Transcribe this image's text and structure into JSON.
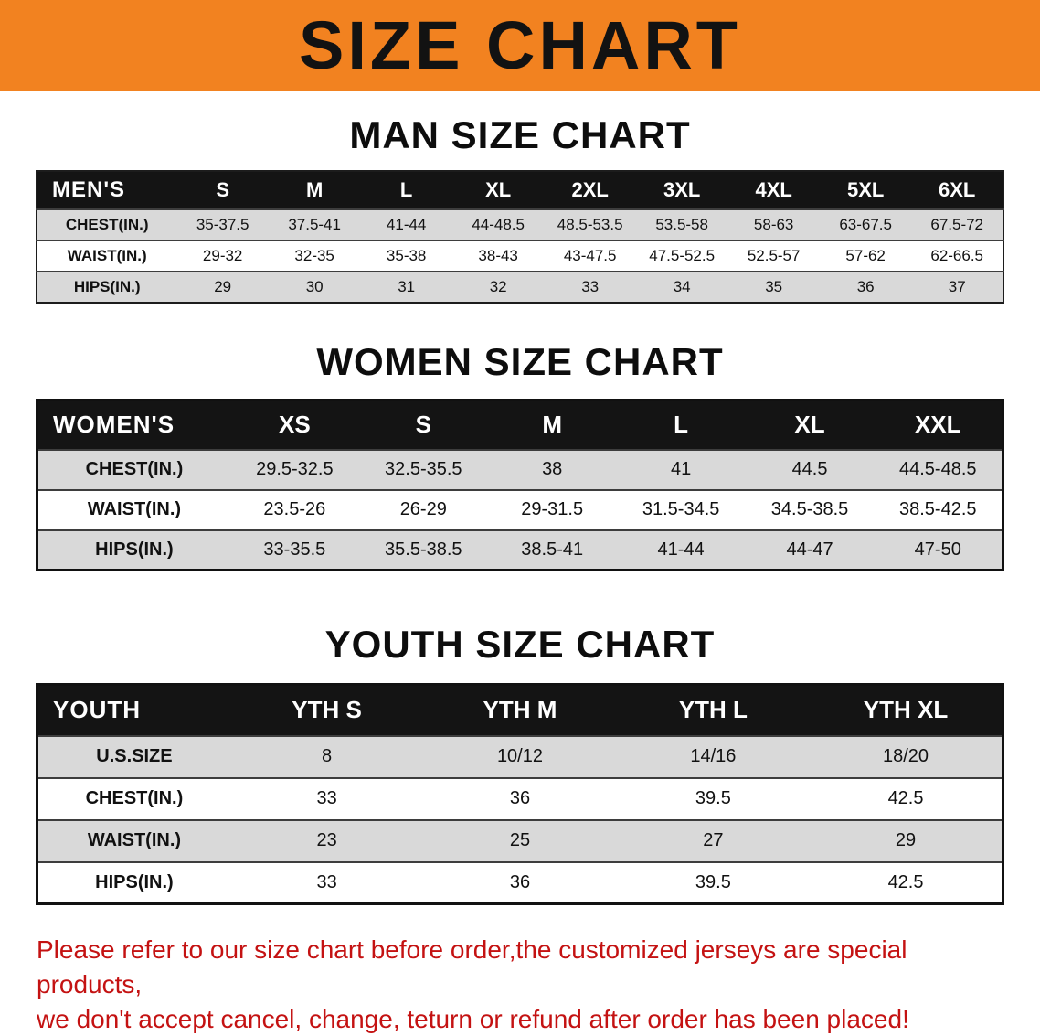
{
  "banner": {
    "title": "SIZE CHART",
    "bg_color": "#F28220",
    "text_color": "#121212"
  },
  "colors": {
    "table_header_bg": "#141414",
    "table_header_text": "#FFFFFF",
    "row_shaded": "#D9D9D9",
    "row_plain": "#FFFFFF",
    "disclaimer_text": "#C41212"
  },
  "men": {
    "heading": "MAN SIZE CHART",
    "table": {
      "header": [
        "MEN'S",
        "S",
        "M",
        "L",
        "XL",
        "2XL",
        "3XL",
        "4XL",
        "5XL",
        "6XL"
      ],
      "rows": [
        {
          "label": "CHEST(IN.)",
          "values": [
            "35-37.5",
            "37.5-41",
            "41-44",
            "44-48.5",
            "48.5-53.5",
            "53.5-58",
            "58-63",
            "63-67.5",
            "67.5-72"
          ]
        },
        {
          "label": "WAIST(IN.)",
          "values": [
            "29-32",
            "32-35",
            "35-38",
            "38-43",
            "43-47.5",
            "47.5-52.5",
            "52.5-57",
            "57-62",
            "62-66.5"
          ]
        },
        {
          "label": "HIPS(IN.)",
          "values": [
            "29",
            "30",
            "31",
            "32",
            "33",
            "34",
            "35",
            "36",
            "37"
          ]
        }
      ]
    }
  },
  "women": {
    "heading": "WOMEN SIZE CHART",
    "table": {
      "header": [
        "WOMEN'S",
        "XS",
        "S",
        "M",
        "L",
        "XL",
        "XXL"
      ],
      "rows": [
        {
          "label": "CHEST(IN.)",
          "values": [
            "29.5-32.5",
            "32.5-35.5",
            "38",
            "41",
            "44.5",
            "44.5-48.5"
          ]
        },
        {
          "label": "WAIST(IN.)",
          "values": [
            "23.5-26",
            "26-29",
            "29-31.5",
            "31.5-34.5",
            "34.5-38.5",
            "38.5-42.5"
          ]
        },
        {
          "label": "HIPS(IN.)",
          "values": [
            "33-35.5",
            "35.5-38.5",
            "38.5-41",
            "41-44",
            "44-47",
            "47-50"
          ]
        }
      ]
    }
  },
  "youth": {
    "heading": "YOUTH SIZE CHART",
    "table": {
      "header": [
        "YOUTH",
        "YTH S",
        "YTH M",
        "YTH L",
        "YTH XL"
      ],
      "rows": [
        {
          "label": "U.S.SIZE",
          "values": [
            "8",
            "10/12",
            "14/16",
            "18/20"
          ]
        },
        {
          "label": "CHEST(IN.)",
          "values": [
            "33",
            "36",
            "39.5",
            "42.5"
          ]
        },
        {
          "label": "WAIST(IN.)",
          "values": [
            "23",
            "25",
            "27",
            "29"
          ]
        },
        {
          "label": "HIPS(IN.)",
          "values": [
            "33",
            "36",
            "39.5",
            "42.5"
          ]
        }
      ]
    }
  },
  "disclaimer": {
    "line1": "Please refer to our size chart before order,the customized jerseys are special products,",
    "line2": "we don't accept cancel, change, teturn or refund after order has been placed!"
  }
}
